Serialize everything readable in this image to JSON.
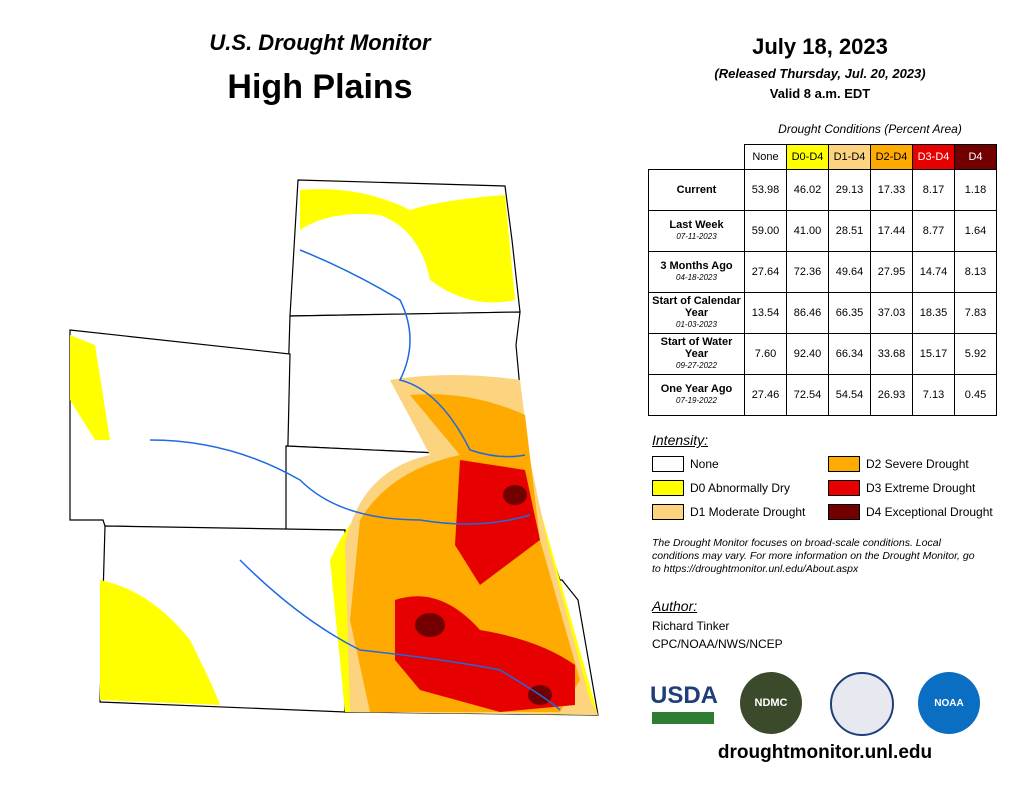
{
  "header": {
    "title": "U.S. Drought Monitor",
    "region": "High Plains"
  },
  "date": {
    "date": "July 18, 2023",
    "released": "(Released Thursday, Jul. 20, 2023)",
    "valid": "Valid 8 a.m. EDT"
  },
  "table": {
    "caption": "Drought Conditions (Percent Area)",
    "columns": [
      "None",
      "D0-D4",
      "D1-D4",
      "D2-D4",
      "D3-D4",
      "D4"
    ],
    "rows": [
      {
        "label": "Current",
        "values": [
          "53.98",
          "46.02",
          "29.13",
          "17.33",
          "8.17",
          "1.18"
        ]
      },
      {
        "label": "Last Week",
        "sublabel": "07-11-2023",
        "values": [
          "59.00",
          "41.00",
          "28.51",
          "17.44",
          "8.77",
          "1.64"
        ]
      },
      {
        "label": "3 Months Ago",
        "sublabel": "04-18-2023",
        "values": [
          "27.64",
          "72.36",
          "49.64",
          "27.95",
          "14.74",
          "8.13"
        ]
      },
      {
        "label": "Start of Calendar Year",
        "sublabel": "01-03-2023",
        "values": [
          "13.54",
          "86.46",
          "66.35",
          "37.03",
          "18.35",
          "7.83"
        ]
      },
      {
        "label": "Start of Water Year",
        "sublabel": "09-27-2022",
        "values": [
          "7.60",
          "92.40",
          "66.34",
          "33.68",
          "15.17",
          "5.92"
        ]
      },
      {
        "label": "One Year Ago",
        "sublabel": "07-19-2022",
        "values": [
          "27.46",
          "72.54",
          "54.54",
          "26.93",
          "7.13",
          "0.45"
        ]
      }
    ]
  },
  "legend": {
    "title": "Intensity:",
    "items": [
      "None",
      "D0 Abnormally Dry",
      "D1 Moderate Drought",
      "D2 Severe Drought",
      "D3 Extreme Drought",
      "D4 Exceptional Drought"
    ]
  },
  "note": "The Drought Monitor focuses on broad-scale conditions. Local conditions may vary. For more information on the Drought Monitor, go to https://droughtmonitor.unl.edu/About.aspx",
  "author": {
    "title": "Author:",
    "name": "Richard Tinker",
    "org": "CPC/NOAA/NWS/NCEP"
  },
  "logos": [
    "USDA",
    "NDMC",
    "NOAA"
  ],
  "url": "droughtmonitor.unl.edu"
}
